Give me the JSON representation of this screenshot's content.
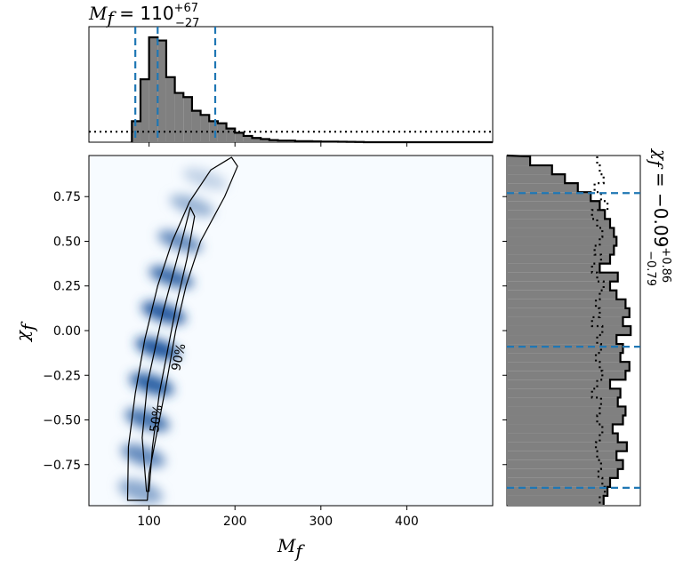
{
  "chart_data": [
    {
      "type": "histogram",
      "panel": "top-marginal",
      "title_main": "M",
      "title_sub": "f",
      "title_eq": " = 110",
      "title_sup": "+67",
      "title_subscript": "−27",
      "xlim": [
        30,
        500
      ],
      "bins_x": [
        80,
        90,
        100,
        110,
        120,
        130,
        140,
        150,
        160,
        170,
        180,
        190,
        200,
        210,
        220,
        230,
        240,
        250,
        260,
        270,
        280,
        290,
        300,
        310,
        320,
        330,
        340
      ],
      "bins_height": [
        0.2,
        0.6,
        1.0,
        0.97,
        0.62,
        0.47,
        0.43,
        0.3,
        0.26,
        0.2,
        0.18,
        0.13,
        0.09,
        0.06,
        0.04,
        0.03,
        0.02,
        0.015,
        0.015,
        0.01,
        0.01,
        0.008,
        0.006,
        0.005,
        0.004,
        0.003,
        0.002
      ],
      "prior_level": 0.1,
      "quantile_lines": [
        84,
        110,
        177
      ],
      "quantile_color": "#1f77b4",
      "hist_color": "#808080"
    },
    {
      "type": "heatmap",
      "panel": "joint-density",
      "xlabel_main": "M",
      "xlabel_sub": "f",
      "ylabel_main": "χ",
      "ylabel_sub": "f",
      "xlim": [
        30,
        500
      ],
      "ylim": [
        -0.98,
        0.98
      ],
      "xticks": [
        100,
        200,
        300,
        400
      ],
      "xtick_labels": [
        "100",
        "200",
        "300",
        "400"
      ],
      "yticks": [
        0.75,
        0.5,
        0.25,
        0.0,
        -0.25,
        -0.5,
        -0.75
      ],
      "ytick_labels": [
        "0.75",
        "0.50",
        "0.25",
        "0.00",
        "−0.25",
        "−0.50",
        "−0.75"
      ],
      "ridge": [
        {
          "y": -0.9,
          "x": 90,
          "w": 22,
          "density": 0.45
        },
        {
          "y": -0.7,
          "x": 93,
          "w": 20,
          "density": 0.62
        },
        {
          "y": -0.5,
          "x": 98,
          "w": 20,
          "density": 0.75
        },
        {
          "y": -0.3,
          "x": 103,
          "w": 20,
          "density": 0.85
        },
        {
          "y": -0.1,
          "x": 110,
          "w": 19,
          "density": 0.92
        },
        {
          "y": 0.1,
          "x": 117,
          "w": 19,
          "density": 0.9
        },
        {
          "y": 0.3,
          "x": 126,
          "w": 18,
          "density": 0.8
        },
        {
          "y": 0.5,
          "x": 136,
          "w": 18,
          "density": 0.62
        },
        {
          "y": 0.7,
          "x": 150,
          "w": 18,
          "density": 0.4
        },
        {
          "y": 0.85,
          "x": 165,
          "w": 18,
          "density": 0.22
        }
      ],
      "contour_50": [
        [
          97,
          -0.9
        ],
        [
          92,
          -0.6
        ],
        [
          98,
          -0.3
        ],
        [
          107,
          -0.1
        ],
        [
          116,
          0.1
        ],
        [
          127,
          0.3
        ],
        [
          138,
          0.5
        ],
        [
          148,
          0.69
        ],
        [
          153,
          0.64
        ],
        [
          144,
          0.4
        ],
        [
          132,
          0.15
        ],
        [
          122,
          -0.1
        ],
        [
          112,
          -0.35
        ],
        [
          104,
          -0.65
        ],
        [
          100,
          -0.9
        ]
      ],
      "contour_90": [
        [
          75,
          -0.95
        ],
        [
          76,
          -0.65
        ],
        [
          84,
          -0.35
        ],
        [
          95,
          -0.05
        ],
        [
          110,
          0.25
        ],
        [
          127,
          0.5
        ],
        [
          147,
          0.72
        ],
        [
          172,
          0.9
        ],
        [
          196,
          0.97
        ],
        [
          203,
          0.92
        ],
        [
          188,
          0.75
        ],
        [
          160,
          0.5
        ],
        [
          143,
          0.25
        ],
        [
          131,
          0.0
        ],
        [
          120,
          -0.3
        ],
        [
          110,
          -0.55
        ],
        [
          100,
          -0.8
        ],
        [
          98,
          -0.95
        ]
      ],
      "contour_labels": [
        "50%",
        "90%"
      ],
      "cmap": [
        "#f7fbff",
        "#08306b"
      ]
    },
    {
      "type": "histogram",
      "panel": "right-marginal",
      "title_main": "χ",
      "title_sub": "f",
      "title_eq": " = −0.09",
      "title_sup": "+0.86",
      "title_subscript": "−0.79",
      "ylim": [
        -0.98,
        0.98
      ],
      "bins_y": [
        0.95,
        0.9,
        0.85,
        0.8,
        0.75,
        0.7,
        0.65,
        0.6,
        0.55,
        0.5,
        0.45,
        0.4,
        0.35,
        0.3,
        0.25,
        0.2,
        0.15,
        0.1,
        0.05,
        0.0,
        -0.05,
        -0.1,
        -0.15,
        -0.2,
        -0.25,
        -0.3,
        -0.35,
        -0.4,
        -0.45,
        -0.5,
        -0.55,
        -0.6,
        -0.65,
        -0.7,
        -0.75,
        -0.8,
        -0.85,
        -0.9,
        -0.95
      ],
      "bins_width": [
        0.18,
        0.35,
        0.45,
        0.55,
        0.65,
        0.72,
        0.76,
        0.8,
        0.83,
        0.85,
        0.83,
        0.8,
        0.72,
        0.86,
        0.8,
        0.85,
        0.92,
        0.95,
        0.9,
        0.96,
        0.85,
        0.9,
        0.88,
        0.95,
        0.92,
        0.8,
        0.88,
        0.86,
        0.92,
        0.9,
        0.82,
        0.86,
        0.93,
        0.85,
        0.9,
        0.86,
        0.8,
        0.78,
        0.75
      ],
      "prior_width": [
        0.7,
        0.72,
        0.75,
        0.68,
        0.73,
        0.78,
        0.66,
        0.7,
        0.74,
        0.72,
        0.68,
        0.73,
        0.66,
        0.7,
        0.75,
        0.72,
        0.69,
        0.72,
        0.66,
        0.74,
        0.7,
        0.73,
        0.69,
        0.72,
        0.74,
        0.7,
        0.66,
        0.73,
        0.72,
        0.7,
        0.74,
        0.72,
        0.69,
        0.7,
        0.73,
        0.71,
        0.74,
        0.76,
        0.72
      ],
      "quantile_lines": [
        -0.88,
        -0.09,
        0.77
      ],
      "quantile_color": "#1f77b4",
      "hist_color": "#808080"
    }
  ]
}
